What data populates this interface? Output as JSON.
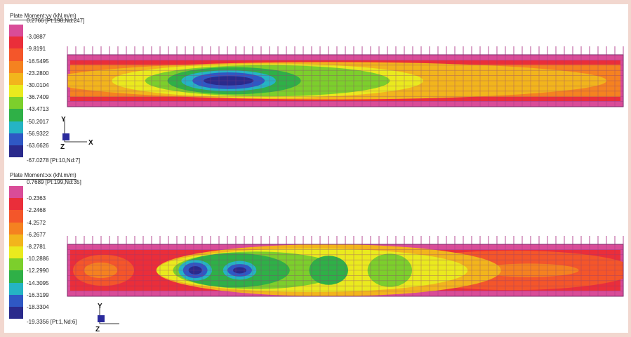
{
  "chart_data": [
    {
      "type": "heatmap",
      "title": "Plate Moment:yy  (kN.m/m)",
      "max_label": "0.2766 [Pt:198,Nd:247]",
      "min_label": "-67.0278 [Pt:10,Nd:7]",
      "legend_levels": [
        "-3.0887",
        "-9.8191",
        "-16.5495",
        "-23.2800",
        "-30.0104",
        "-36.7409",
        "-43.4713",
        "-50.2017",
        "-56.9322",
        "-63.6626"
      ],
      "legend_colors": [
        "#d94c98",
        "#ea2e3a",
        "#f4562a",
        "#f58220",
        "#f2b51c",
        "#eaea1e",
        "#7ccf2c",
        "#2fb047",
        "#25b4c4",
        "#2f58c4",
        "#2a2a8c"
      ],
      "axes": [
        "Y",
        "Z",
        "X"
      ],
      "zones": [
        {
          "level": "-23.2800",
          "cx": 0.47,
          "cy": 0.5,
          "rx": 0.5,
          "ry": 0.36
        },
        {
          "level": "-30.0104",
          "cx": 0.36,
          "cy": 0.5,
          "rx": 0.28,
          "ry": 0.33
        },
        {
          "level": "-36.7409",
          "cx": 0.36,
          "cy": 0.5,
          "rx": 0.22,
          "ry": 0.3
        },
        {
          "level": "-43.4713",
          "cx": 0.3,
          "cy": 0.5,
          "rx": 0.12,
          "ry": 0.26
        },
        {
          "level": "-50.2017",
          "cx": 0.29,
          "cy": 0.5,
          "rx": 0.085,
          "ry": 0.2
        },
        {
          "level": "-56.9322",
          "cx": 0.29,
          "cy": 0.5,
          "rx": 0.065,
          "ry": 0.16
        },
        {
          "level": "-63.6626",
          "cx": 0.29,
          "cy": 0.5,
          "rx": 0.045,
          "ry": 0.09
        }
      ]
    },
    {
      "type": "heatmap",
      "title": "Plate Moment:xx  (kN.m/m)",
      "max_label": "0.7689 [Pt:199,Nd:35]",
      "min_label": "-19.3356 [Pt:1,Nd:6]",
      "legend_levels": [
        "-0.2363",
        "-2.2468",
        "-4.2572",
        "-6.2677",
        "-8.2781",
        "-10.2886",
        "-12.2990",
        "-14.3095",
        "-16.3199",
        "-18.3304"
      ],
      "legend_colors": [
        "#d94c98",
        "#ea2e3a",
        "#f4562a",
        "#f58220",
        "#f2b51c",
        "#eaea1e",
        "#7ccf2c",
        "#2fb047",
        "#25b4c4",
        "#2f58c4",
        "#2a2a8c"
      ],
      "axes": [
        "Y",
        "Z"
      ],
      "zones": [
        {
          "level": "-2.2468",
          "cx": 0.065,
          "cy": 0.5,
          "rx": 0.055,
          "ry": 0.3
        },
        {
          "level": "-4.2572",
          "cx": 0.06,
          "cy": 0.5,
          "rx": 0.03,
          "ry": 0.15
        },
        {
          "level": "-2.2468",
          "cx": 0.8,
          "cy": 0.5,
          "rx": 0.22,
          "ry": 0.38
        },
        {
          "level": "-4.2572",
          "cx": 0.83,
          "cy": 0.5,
          "rx": 0.09,
          "ry": 0.13
        },
        {
          "level": "-6.2677",
          "cx": 0.47,
          "cy": 0.5,
          "rx": 0.31,
          "ry": 0.5
        },
        {
          "level": "-8.2781",
          "cx": 0.44,
          "cy": 0.5,
          "rx": 0.28,
          "ry": 0.42
        },
        {
          "level": "-10.2886",
          "cx": 0.58,
          "cy": 0.5,
          "rx": 0.04,
          "ry": 0.32
        },
        {
          "level": "-10.2886",
          "cx": 0.34,
          "cy": 0.5,
          "rx": 0.15,
          "ry": 0.36
        },
        {
          "level": "-12.2990",
          "cx": 0.3,
          "cy": 0.5,
          "rx": 0.1,
          "ry": 0.33
        },
        {
          "level": "-12.2990",
          "cx": 0.47,
          "cy": 0.5,
          "rx": 0.035,
          "ry": 0.28
        },
        {
          "level": "-14.3095",
          "cx": 0.23,
          "cy": 0.5,
          "rx": 0.03,
          "ry": 0.2
        },
        {
          "level": "-14.3095",
          "cx": 0.31,
          "cy": 0.5,
          "rx": 0.03,
          "ry": 0.18
        },
        {
          "level": "-16.3199",
          "cx": 0.23,
          "cy": 0.5,
          "rx": 0.022,
          "ry": 0.15
        },
        {
          "level": "-16.3199",
          "cx": 0.31,
          "cy": 0.5,
          "rx": 0.022,
          "ry": 0.12
        },
        {
          "level": "-18.3304",
          "cx": 0.23,
          "cy": 0.5,
          "rx": 0.012,
          "ry": 0.08
        },
        {
          "level": "-18.3304",
          "cx": 0.31,
          "cy": 0.5,
          "rx": 0.012,
          "ry": 0.06
        }
      ]
    }
  ]
}
